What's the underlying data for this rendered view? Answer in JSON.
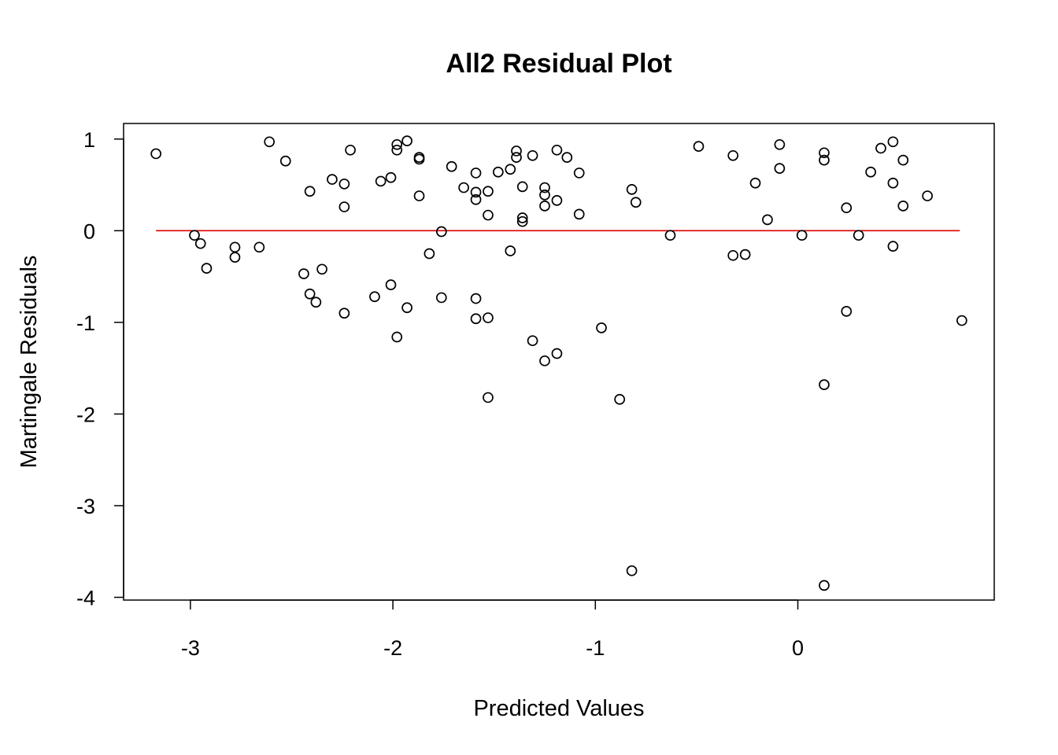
{
  "chart_data": {
    "type": "scatter",
    "title": "All2 Residual Plot",
    "xlabel": "Predicted Values",
    "ylabel": "Martingale Residuals",
    "xlim": [
      -3.33,
      0.97
    ],
    "ylim": [
      -4.03,
      1.17
    ],
    "x_ticks": [
      -3,
      -2,
      -1,
      0
    ],
    "x_tick_labels": [
      "-3",
      "-2",
      "-1",
      "0"
    ],
    "y_ticks": [
      -4,
      -3,
      -2,
      -1,
      0,
      1
    ],
    "y_tick_labels": [
      "-4",
      "-3",
      "-2",
      "-1",
      "0",
      "1"
    ],
    "reference_line": {
      "y": 0,
      "x_from": -3.17,
      "x_to": 0.8,
      "color": "#dd0000"
    },
    "marker_color": "#000000",
    "grid": false,
    "points": [
      {
        "x": -3.17,
        "y": 0.84
      },
      {
        "x": -2.98,
        "y": -0.05
      },
      {
        "x": -2.95,
        "y": -0.14
      },
      {
        "x": -2.92,
        "y": -0.41
      },
      {
        "x": -2.78,
        "y": -0.18
      },
      {
        "x": -2.78,
        "y": -0.29
      },
      {
        "x": -2.66,
        "y": -0.18
      },
      {
        "x": -2.61,
        "y": 0.97
      },
      {
        "x": -2.53,
        "y": 0.76
      },
      {
        "x": -2.44,
        "y": -0.47
      },
      {
        "x": -2.41,
        "y": 0.43
      },
      {
        "x": -2.41,
        "y": -0.69
      },
      {
        "x": -2.38,
        "y": -0.78
      },
      {
        "x": -2.35,
        "y": -0.42
      },
      {
        "x": -2.3,
        "y": 0.56
      },
      {
        "x": -2.24,
        "y": 0.51
      },
      {
        "x": -2.24,
        "y": 0.26
      },
      {
        "x": -2.24,
        "y": -0.9
      },
      {
        "x": -2.21,
        "y": 0.88
      },
      {
        "x": -2.09,
        "y": -0.72
      },
      {
        "x": -2.06,
        "y": 0.54
      },
      {
        "x": -2.01,
        "y": 0.58
      },
      {
        "x": -2.01,
        "y": -0.59
      },
      {
        "x": -1.98,
        "y": 0.94
      },
      {
        "x": -1.98,
        "y": 0.88
      },
      {
        "x": -1.98,
        "y": -1.16
      },
      {
        "x": -1.93,
        "y": 0.98
      },
      {
        "x": -1.93,
        "y": -0.84
      },
      {
        "x": -1.87,
        "y": 0.8
      },
      {
        "x": -1.87,
        "y": 0.78
      },
      {
        "x": -1.87,
        "y": 0.38
      },
      {
        "x": -1.82,
        "y": -0.25
      },
      {
        "x": -1.76,
        "y": -0.01
      },
      {
        "x": -1.76,
        "y": -0.73
      },
      {
        "x": -1.71,
        "y": 0.7
      },
      {
        "x": -1.65,
        "y": 0.47
      },
      {
        "x": -1.59,
        "y": 0.63
      },
      {
        "x": -1.59,
        "y": 0.42
      },
      {
        "x": -1.59,
        "y": 0.34
      },
      {
        "x": -1.59,
        "y": -0.74
      },
      {
        "x": -1.59,
        "y": -0.96
      },
      {
        "x": -1.53,
        "y": 0.43
      },
      {
        "x": -1.53,
        "y": 0.17
      },
      {
        "x": -1.53,
        "y": -0.95
      },
      {
        "x": -1.53,
        "y": -1.82
      },
      {
        "x": -1.48,
        "y": 0.64
      },
      {
        "x": -1.42,
        "y": 0.67
      },
      {
        "x": -1.42,
        "y": -0.22
      },
      {
        "x": -1.39,
        "y": 0.87
      },
      {
        "x": -1.39,
        "y": 0.8
      },
      {
        "x": -1.36,
        "y": 0.48
      },
      {
        "x": -1.36,
        "y": 0.14
      },
      {
        "x": -1.36,
        "y": 0.1
      },
      {
        "x": -1.31,
        "y": 0.82
      },
      {
        "x": -1.31,
        "y": -1.2
      },
      {
        "x": -1.25,
        "y": 0.47
      },
      {
        "x": -1.25,
        "y": 0.39
      },
      {
        "x": -1.25,
        "y": 0.27
      },
      {
        "x": -1.25,
        "y": -1.42
      },
      {
        "x": -1.19,
        "y": 0.88
      },
      {
        "x": -1.19,
        "y": 0.33
      },
      {
        "x": -1.19,
        "y": -1.34
      },
      {
        "x": -1.14,
        "y": 0.8
      },
      {
        "x": -1.08,
        "y": 0.63
      },
      {
        "x": -1.08,
        "y": 0.18
      },
      {
        "x": -0.97,
        "y": -1.06
      },
      {
        "x": -0.88,
        "y": -1.84
      },
      {
        "x": -0.82,
        "y": 0.45
      },
      {
        "x": -0.82,
        "y": -3.71
      },
      {
        "x": -0.8,
        "y": 0.31
      },
      {
        "x": -0.63,
        "y": -0.05
      },
      {
        "x": -0.49,
        "y": 0.92
      },
      {
        "x": -0.32,
        "y": 0.82
      },
      {
        "x": -0.32,
        "y": -0.27
      },
      {
        "x": -0.26,
        "y": -0.26
      },
      {
        "x": -0.21,
        "y": 0.52
      },
      {
        "x": -0.15,
        "y": 0.12
      },
      {
        "x": -0.09,
        "y": 0.94
      },
      {
        "x": -0.09,
        "y": 0.68
      },
      {
        "x": 0.02,
        "y": -0.05
      },
      {
        "x": 0.13,
        "y": 0.85
      },
      {
        "x": 0.13,
        "y": 0.77
      },
      {
        "x": 0.13,
        "y": -1.68
      },
      {
        "x": 0.13,
        "y": -3.87
      },
      {
        "x": 0.24,
        "y": 0.25
      },
      {
        "x": 0.24,
        "y": -0.88
      },
      {
        "x": 0.3,
        "y": -0.05
      },
      {
        "x": 0.36,
        "y": 0.64
      },
      {
        "x": 0.41,
        "y": 0.9
      },
      {
        "x": 0.47,
        "y": 0.97
      },
      {
        "x": 0.47,
        "y": 0.52
      },
      {
        "x": 0.47,
        "y": -0.17
      },
      {
        "x": 0.52,
        "y": 0.77
      },
      {
        "x": 0.52,
        "y": 0.27
      },
      {
        "x": 0.64,
        "y": 0.38
      },
      {
        "x": 0.81,
        "y": -0.98
      }
    ]
  }
}
